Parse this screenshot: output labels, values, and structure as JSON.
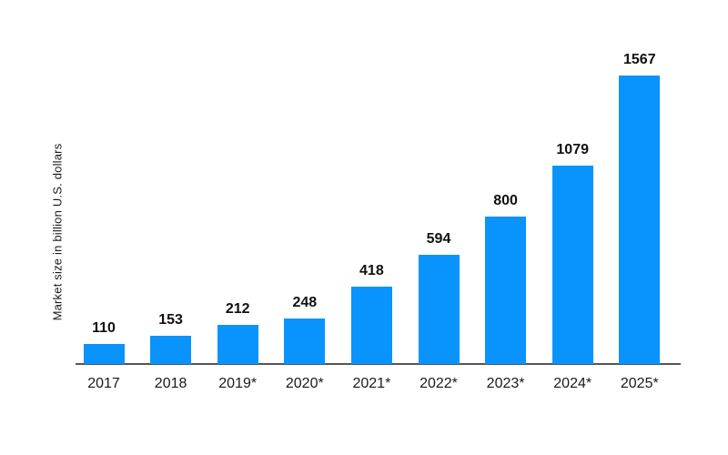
{
  "chart_data": {
    "type": "bar",
    "categories": [
      "2017",
      "2018",
      "2019*",
      "2020*",
      "2021*",
      "2022*",
      "2023*",
      "2024*",
      "2025*"
    ],
    "values": [
      110,
      153,
      212,
      248,
      418,
      594,
      800,
      1079,
      1567
    ],
    "title": "",
    "xlabel": "",
    "ylabel": "Market size in billion U.S. dollars",
    "ylim": [
      0,
      1600
    ],
    "grid": false,
    "legend_position": "none",
    "bar_color": "#0894fc",
    "axis_line_color": "#55555a",
    "value_label_color": "#111111",
    "tick_label_color": "#1a1a1a",
    "background_color": "#ffffff"
  }
}
